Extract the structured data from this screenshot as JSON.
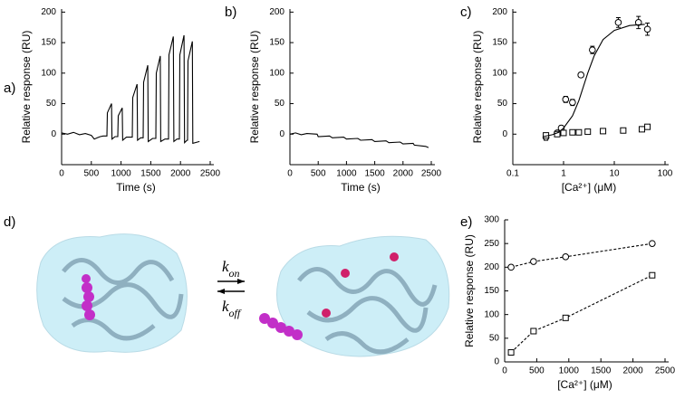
{
  "chart_data": [
    {
      "type": "line",
      "panel_label": "a)",
      "xlabel": "Time (s)",
      "ylabel": "Relative response (RU)",
      "xlim": [
        0,
        2500
      ],
      "ylim": [
        -50,
        205
      ],
      "xticks": [
        0,
        500,
        1000,
        1500,
        2000,
        2500
      ],
      "yticks": [
        0,
        50,
        100,
        150,
        200
      ],
      "series": [
        {
          "color": "#000000",
          "line": "solid",
          "marker": "none",
          "x": [
            0,
            100,
            200,
            300,
            400,
            500,
            550,
            600,
            650,
            700,
            762,
            770,
            840,
            848,
            900,
            945,
            953,
            1020,
            1028,
            1090,
            1189,
            1197,
            1270,
            1278,
            1330,
            1372,
            1380,
            1450,
            1458,
            1530,
            1585,
            1593,
            1660,
            1668,
            1740,
            1799,
            1807,
            1880,
            1888,
            1940,
            1982,
            1990,
            2060,
            2068,
            2110,
            2119,
            2127,
            2200,
            2208,
            2320
          ],
          "values": [
            2,
            0,
            3,
            -1,
            1,
            -2,
            -8,
            -6,
            -4,
            -3,
            -3,
            35,
            50,
            -8,
            -4,
            -4,
            30,
            43,
            -10,
            -5,
            -5,
            60,
            82,
            -10,
            -6,
            -6,
            85,
            113,
            -12,
            -7,
            -7,
            100,
            128,
            -12,
            -8,
            -8,
            130,
            160,
            -12,
            -8,
            -8,
            130,
            162,
            -14,
            -10,
            -10,
            120,
            152,
            -15,
            -12
          ]
        }
      ]
    },
    {
      "type": "line",
      "panel_label": "b)",
      "xlabel": "Time (s)",
      "ylabel": "Relative response (RU)",
      "xlim": [
        0,
        2500
      ],
      "ylim": [
        -50,
        205
      ],
      "xticks": [
        0,
        500,
        1000,
        1500,
        2000,
        2500
      ],
      "yticks": [
        0,
        50,
        100,
        150,
        200
      ],
      "series": [
        {
          "color": "#000000",
          "line": "solid",
          "marker": "none",
          "x": [
            0,
            100,
            200,
            300,
            480,
            500,
            700,
            750,
            950,
            1000,
            1200,
            1250,
            1450,
            1500,
            1700,
            1750,
            1950,
            2000,
            2180,
            2200,
            2400,
            2450
          ],
          "values": [
            0,
            2,
            -1,
            1,
            0,
            -4,
            -3,
            -6,
            -5,
            -8,
            -7,
            -10,
            -9,
            -12,
            -11,
            -14,
            -13,
            -16,
            -15,
            -18,
            -20,
            -22
          ]
        }
      ]
    },
    {
      "type": "scatter",
      "panel_label": "c)",
      "xlabel": "[Ca²⁺]  (μM)",
      "ylabel": "Relative response (RU)",
      "log_x": true,
      "xlim": [
        0.1,
        100
      ],
      "ylim": [
        -50,
        205
      ],
      "xticks": [
        0.1,
        1,
        10,
        100
      ],
      "yticks": [
        0,
        50,
        100,
        150,
        200
      ],
      "series": [
        {
          "color": "#000000",
          "line": "none",
          "marker": "circle",
          "x": [
            0.45,
            0.75,
            0.9,
            1.1,
            1.5,
            2.2,
            3.7,
            12,
            30,
            45
          ],
          "values": [
            -5,
            2,
            10,
            57,
            52,
            97,
            138,
            183,
            183,
            172
          ],
          "errors": [
            5,
            3,
            4,
            5,
            5,
            4,
            6,
            8,
            10,
            10
          ]
        },
        {
          "color": "#000000",
          "line": "none",
          "marker": "square",
          "x": [
            0.45,
            0.75,
            1,
            1.5,
            2,
            3,
            6,
            15,
            35,
            45
          ],
          "values": [
            -2,
            0,
            2,
            3,
            3,
            4,
            5,
            6,
            8,
            12
          ]
        },
        {
          "color": "#000000",
          "line": "solid",
          "marker": "none",
          "x": [
            0.4,
            0.6,
            0.8,
            1,
            1.5,
            2,
            3,
            4,
            6,
            10,
            20,
            40
          ],
          "values": [
            -4,
            -1,
            3,
            10,
            30,
            55,
            100,
            128,
            155,
            170,
            178,
            180
          ]
        }
      ]
    },
    {
      "type": "scatter",
      "panel_label": "e)",
      "xlabel": "[Ca²⁺]  (μM)",
      "ylabel": "Relative response (RU)",
      "xlim": [
        0,
        2500
      ],
      "ylim": [
        0,
        300
      ],
      "xticks": [
        0,
        500,
        1000,
        1500,
        2000,
        2500
      ],
      "yticks": [
        0,
        50,
        100,
        150,
        200,
        250,
        300
      ],
      "series": [
        {
          "color": "#000000",
          "line": "dashed",
          "marker": "circle",
          "x": [
            100,
            450,
            950,
            2300
          ],
          "values": [
            200,
            212,
            222,
            250
          ]
        },
        {
          "color": "#000000",
          "line": "dashed",
          "marker": "square",
          "x": [
            100,
            450,
            950,
            2300
          ],
          "values": [
            20,
            65,
            93,
            183
          ]
        }
      ]
    }
  ],
  "diagram": {
    "panel_label": "d)",
    "forward": {
      "k": "k",
      "sub": "on"
    },
    "reverse": {
      "k": "k",
      "sub": "off"
    }
  }
}
